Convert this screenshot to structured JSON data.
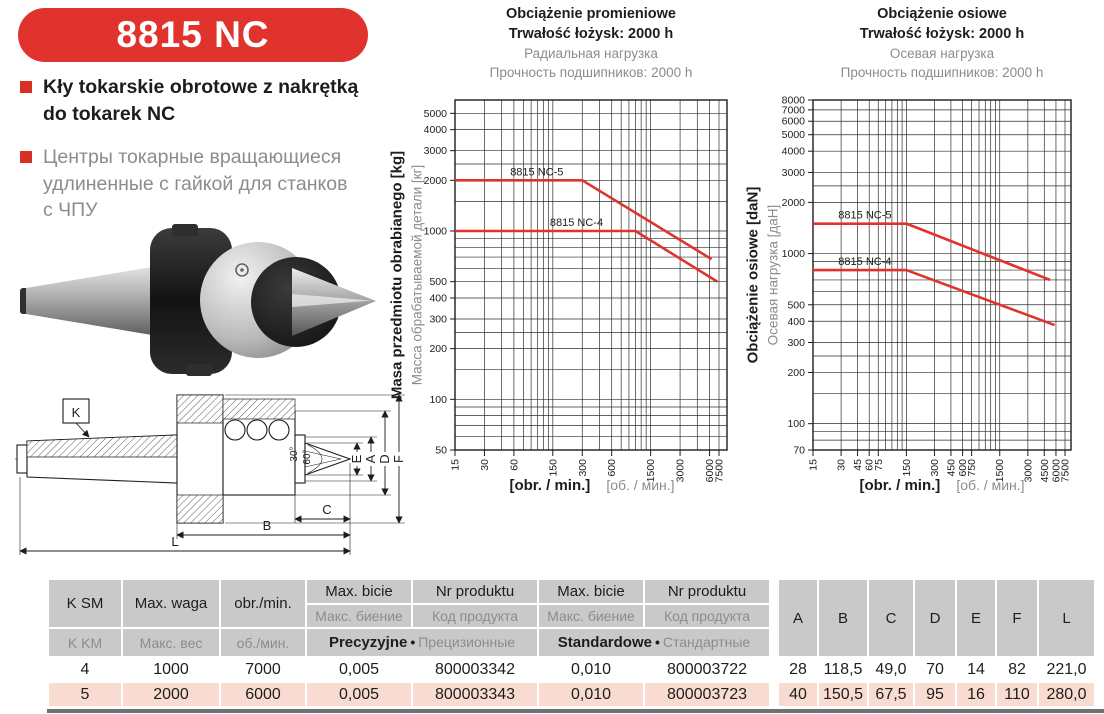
{
  "banner": {
    "title": "8815 NC"
  },
  "bullets": [
    {
      "lines": [
        "Kły tokarskie obrotowe z nakrętką",
        "do tokarek NC"
      ]
    },
    {
      "lines": [
        "Центры токарные вращающиеся",
        "удлиненные с гайкой для станков",
        "с ЧПУ"
      ]
    }
  ],
  "colors": {
    "red": "#e0332e",
    "header_gray": "#c9c9c9",
    "row_highlight": "#f9dcd1",
    "text_dark": "#1d1d1b",
    "text_gray": "#8c8c8c"
  },
  "drawing": {
    "k": "K",
    "angle_30": "30°",
    "angle_60": "60°",
    "dim_e": "E",
    "dim_a": "A",
    "dim_d": "D",
    "dim_f": "F",
    "dim_c": "C",
    "dim_b": "B",
    "dim_l": "L"
  },
  "chart_data": [
    {
      "type": "line",
      "title_pl": [
        "Obciążenie promieniowe",
        "Trwałość łożysk: 2000 h"
      ],
      "title_ru": [
        "Радиальная нагрузка",
        "Прочность подшипников: 2000 h"
      ],
      "ylabel_pl": "Masa przedmiotu obrabianego [kg]",
      "ylabel_ru": "Масса обрабатываемой детали [кг]",
      "xlabel_pl": "[obr. / min.]",
      "xlabel_ru": "[об. / мин.]",
      "x_scale": "log",
      "y_scale": "log",
      "x_range": [
        15,
        7500
      ],
      "y_range": [
        50,
        6000
      ],
      "x_ticks_labeled": [
        15,
        30,
        60,
        150,
        300,
        600,
        1500,
        3000,
        6000,
        7500
      ],
      "x_grid": [
        15,
        30,
        45,
        60,
        75,
        90,
        105,
        120,
        135,
        150,
        300,
        450,
        600,
        750,
        900,
        1050,
        1200,
        1350,
        1500,
        3000,
        4500,
        6000,
        7500
      ],
      "y_ticks_labeled": [
        5000,
        4000,
        3000,
        2000,
        1000,
        500,
        400,
        300,
        200,
        100,
        50
      ],
      "y_grid": [
        50,
        60,
        70,
        80,
        90,
        100,
        150,
        200,
        250,
        300,
        400,
        500,
        600,
        700,
        800,
        900,
        1000,
        1500,
        2000,
        2500,
        3000,
        4000,
        5000
      ],
      "series": [
        {
          "name": "8815 NC-5",
          "points": [
            [
              15,
              2000
            ],
            [
              300,
              2000
            ],
            [
              6300,
              680
            ]
          ],
          "label_x": 55,
          "label_y": 2000
        },
        {
          "name": "8815 NC-4",
          "points": [
            [
              15,
              1000
            ],
            [
              1050,
              1000
            ],
            [
              7200,
              500
            ]
          ],
          "label_x": 140,
          "label_y": 1000
        }
      ]
    },
    {
      "type": "line",
      "title_pl": [
        "Obciążenie osiowe",
        "Trwałość łożysk: 2000 h"
      ],
      "title_ru": [
        "Осевая нагрузка",
        "Прочность подшипников: 2000 h"
      ],
      "ylabel_pl": "Obciążenie osiowe [daN]",
      "ylabel_ru": "Осевая нагрузка [даН]",
      "xlabel_pl": "[obr. / min.]",
      "xlabel_ru": "[об. / мин.]",
      "x_scale": "log",
      "y_scale": "log",
      "x_range": [
        15,
        7500
      ],
      "y_range": [
        70,
        8000
      ],
      "x_ticks_labeled": [
        15,
        30,
        45,
        60,
        75,
        150,
        300,
        450,
        600,
        750,
        1500,
        3000,
        4500,
        6000,
        7500
      ],
      "x_grid": [
        15,
        30,
        45,
        60,
        75,
        90,
        105,
        120,
        135,
        150,
        300,
        450,
        600,
        750,
        900,
        1050,
        1200,
        1350,
        1500,
        3000,
        4500,
        6000,
        7500
      ],
      "y_ticks_labeled": [
        8000,
        7000,
        6000,
        5000,
        4000,
        3000,
        2000,
        1000,
        500,
        400,
        300,
        200,
        100,
        70
      ],
      "y_grid": [
        70,
        80,
        90,
        100,
        150,
        200,
        250,
        300,
        400,
        500,
        600,
        700,
        800,
        900,
        1000,
        1500,
        2000,
        2500,
        3000,
        4000,
        5000,
        6000,
        7000,
        8000
      ],
      "series": [
        {
          "name": "8815 NC-5",
          "points": [
            [
              15,
              1500
            ],
            [
              150,
              1500
            ],
            [
              5200,
              700
            ]
          ],
          "label_x": 28,
          "label_y": 1500
        },
        {
          "name": "8815 NC-4",
          "points": [
            [
              15,
              800
            ],
            [
              150,
              800
            ],
            [
              5800,
              380
            ]
          ],
          "label_x": 28,
          "label_y": 800
        }
      ]
    }
  ],
  "table": {
    "header": {
      "sep": "•",
      "col1": {
        "pl": "K SM",
        "ru": "K KM"
      },
      "col2": {
        "pl": "Max. waga",
        "ru": "Макс. вес"
      },
      "col3": {
        "pl": "obr./min.",
        "ru": "об./мин."
      },
      "bicie": {
        "pl": "Max. bicie",
        "ru": "Макс. биение"
      },
      "nr": {
        "pl": "Nr produktu",
        "ru": "Код продукта"
      },
      "group_prec": {
        "pl": "Precyzyjne",
        "ru": "Прецизионные"
      },
      "group_std": {
        "pl": "Standardowe",
        "ru": "Стандартные"
      },
      "dims": [
        "A",
        "B",
        "C",
        "D",
        "E",
        "F",
        "L"
      ]
    },
    "rows": [
      [
        "4",
        "1000",
        "7000",
        "0,005",
        "800003342",
        "0,010",
        "800003722",
        "28",
        "118,5",
        "49,0",
        "70",
        "14",
        "82",
        "221,0"
      ],
      [
        "5",
        "2000",
        "6000",
        "0,005",
        "800003343",
        "0,010",
        "800003723",
        "40",
        "150,5",
        "67,5",
        "95",
        "16",
        "110",
        "280,0"
      ]
    ]
  }
}
